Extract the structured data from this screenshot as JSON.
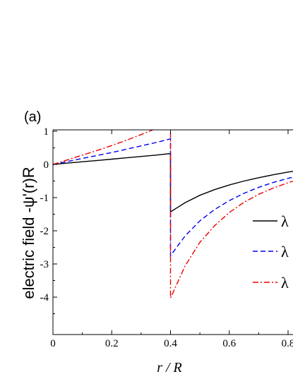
{
  "chart_data": {
    "type": "line",
    "panel_label": "(a)",
    "ylabel": "electric field  -ψ'(r)R",
    "xlabel": "r / R",
    "xlim": [
      0,
      0.85
    ],
    "ylim": [
      -4.35,
      1.6
    ],
    "xticks": [
      0,
      0.2,
      0.4,
      0.6,
      0.8
    ],
    "xtick_labels": [
      "0",
      "0.2",
      "0.4",
      "0.6",
      "0.8"
    ],
    "yticks": [
      1,
      0,
      -1,
      -2,
      -3,
      -4
    ],
    "ytick_labels": [
      "1",
      "0",
      "-1",
      "-2",
      "-3",
      "-4"
    ],
    "grid": false,
    "legend_position": "right",
    "series": [
      {
        "name": "λ",
        "color": "#000000",
        "dash": "solid",
        "x": [
          0,
          0.05,
          0.1,
          0.15,
          0.2,
          0.25,
          0.3,
          0.35,
          0.4,
          0.4,
          0.45,
          0.5,
          0.55,
          0.6,
          0.65,
          0.7,
          0.75,
          0.8,
          0.85
        ],
        "y": [
          0,
          0.04,
          0.08,
          0.12,
          0.16,
          0.2,
          0.24,
          0.28,
          0.33,
          -1.43,
          -1.15,
          -0.93,
          -0.76,
          -0.62,
          -0.5,
          -0.4,
          -0.31,
          -0.23,
          -0.16
        ]
      },
      {
        "name": "λ",
        "color": "#0000ee",
        "dash": "dashed",
        "x": [
          0,
          0.05,
          0.1,
          0.15,
          0.2,
          0.25,
          0.3,
          0.35,
          0.4,
          0.4,
          0.45,
          0.5,
          0.55,
          0.6,
          0.65,
          0.7,
          0.75,
          0.8,
          0.85
        ],
        "y": [
          0,
          0.09,
          0.18,
          0.27,
          0.36,
          0.46,
          0.56,
          0.66,
          0.77,
          -2.75,
          -2.15,
          -1.7,
          -1.36,
          -1.09,
          -0.87,
          -0.69,
          -0.54,
          -0.42,
          -0.31
        ]
      },
      {
        "name": "λ",
        "color": "#ee0000",
        "dash": "dashdot",
        "x": [
          0,
          0.05,
          0.1,
          0.15,
          0.2,
          0.25,
          0.3,
          0.35,
          0.4,
          0.4,
          0.45,
          0.5,
          0.55,
          0.6,
          0.65,
          0.7,
          0.75,
          0.8,
          0.85
        ],
        "y": [
          0,
          0.14,
          0.28,
          0.42,
          0.57,
          0.73,
          0.9,
          1.08,
          1.28,
          -4.03,
          -3.05,
          -2.35,
          -1.85,
          -1.45,
          -1.14,
          -0.9,
          -0.71,
          -0.55,
          -0.42
        ]
      }
    ]
  }
}
